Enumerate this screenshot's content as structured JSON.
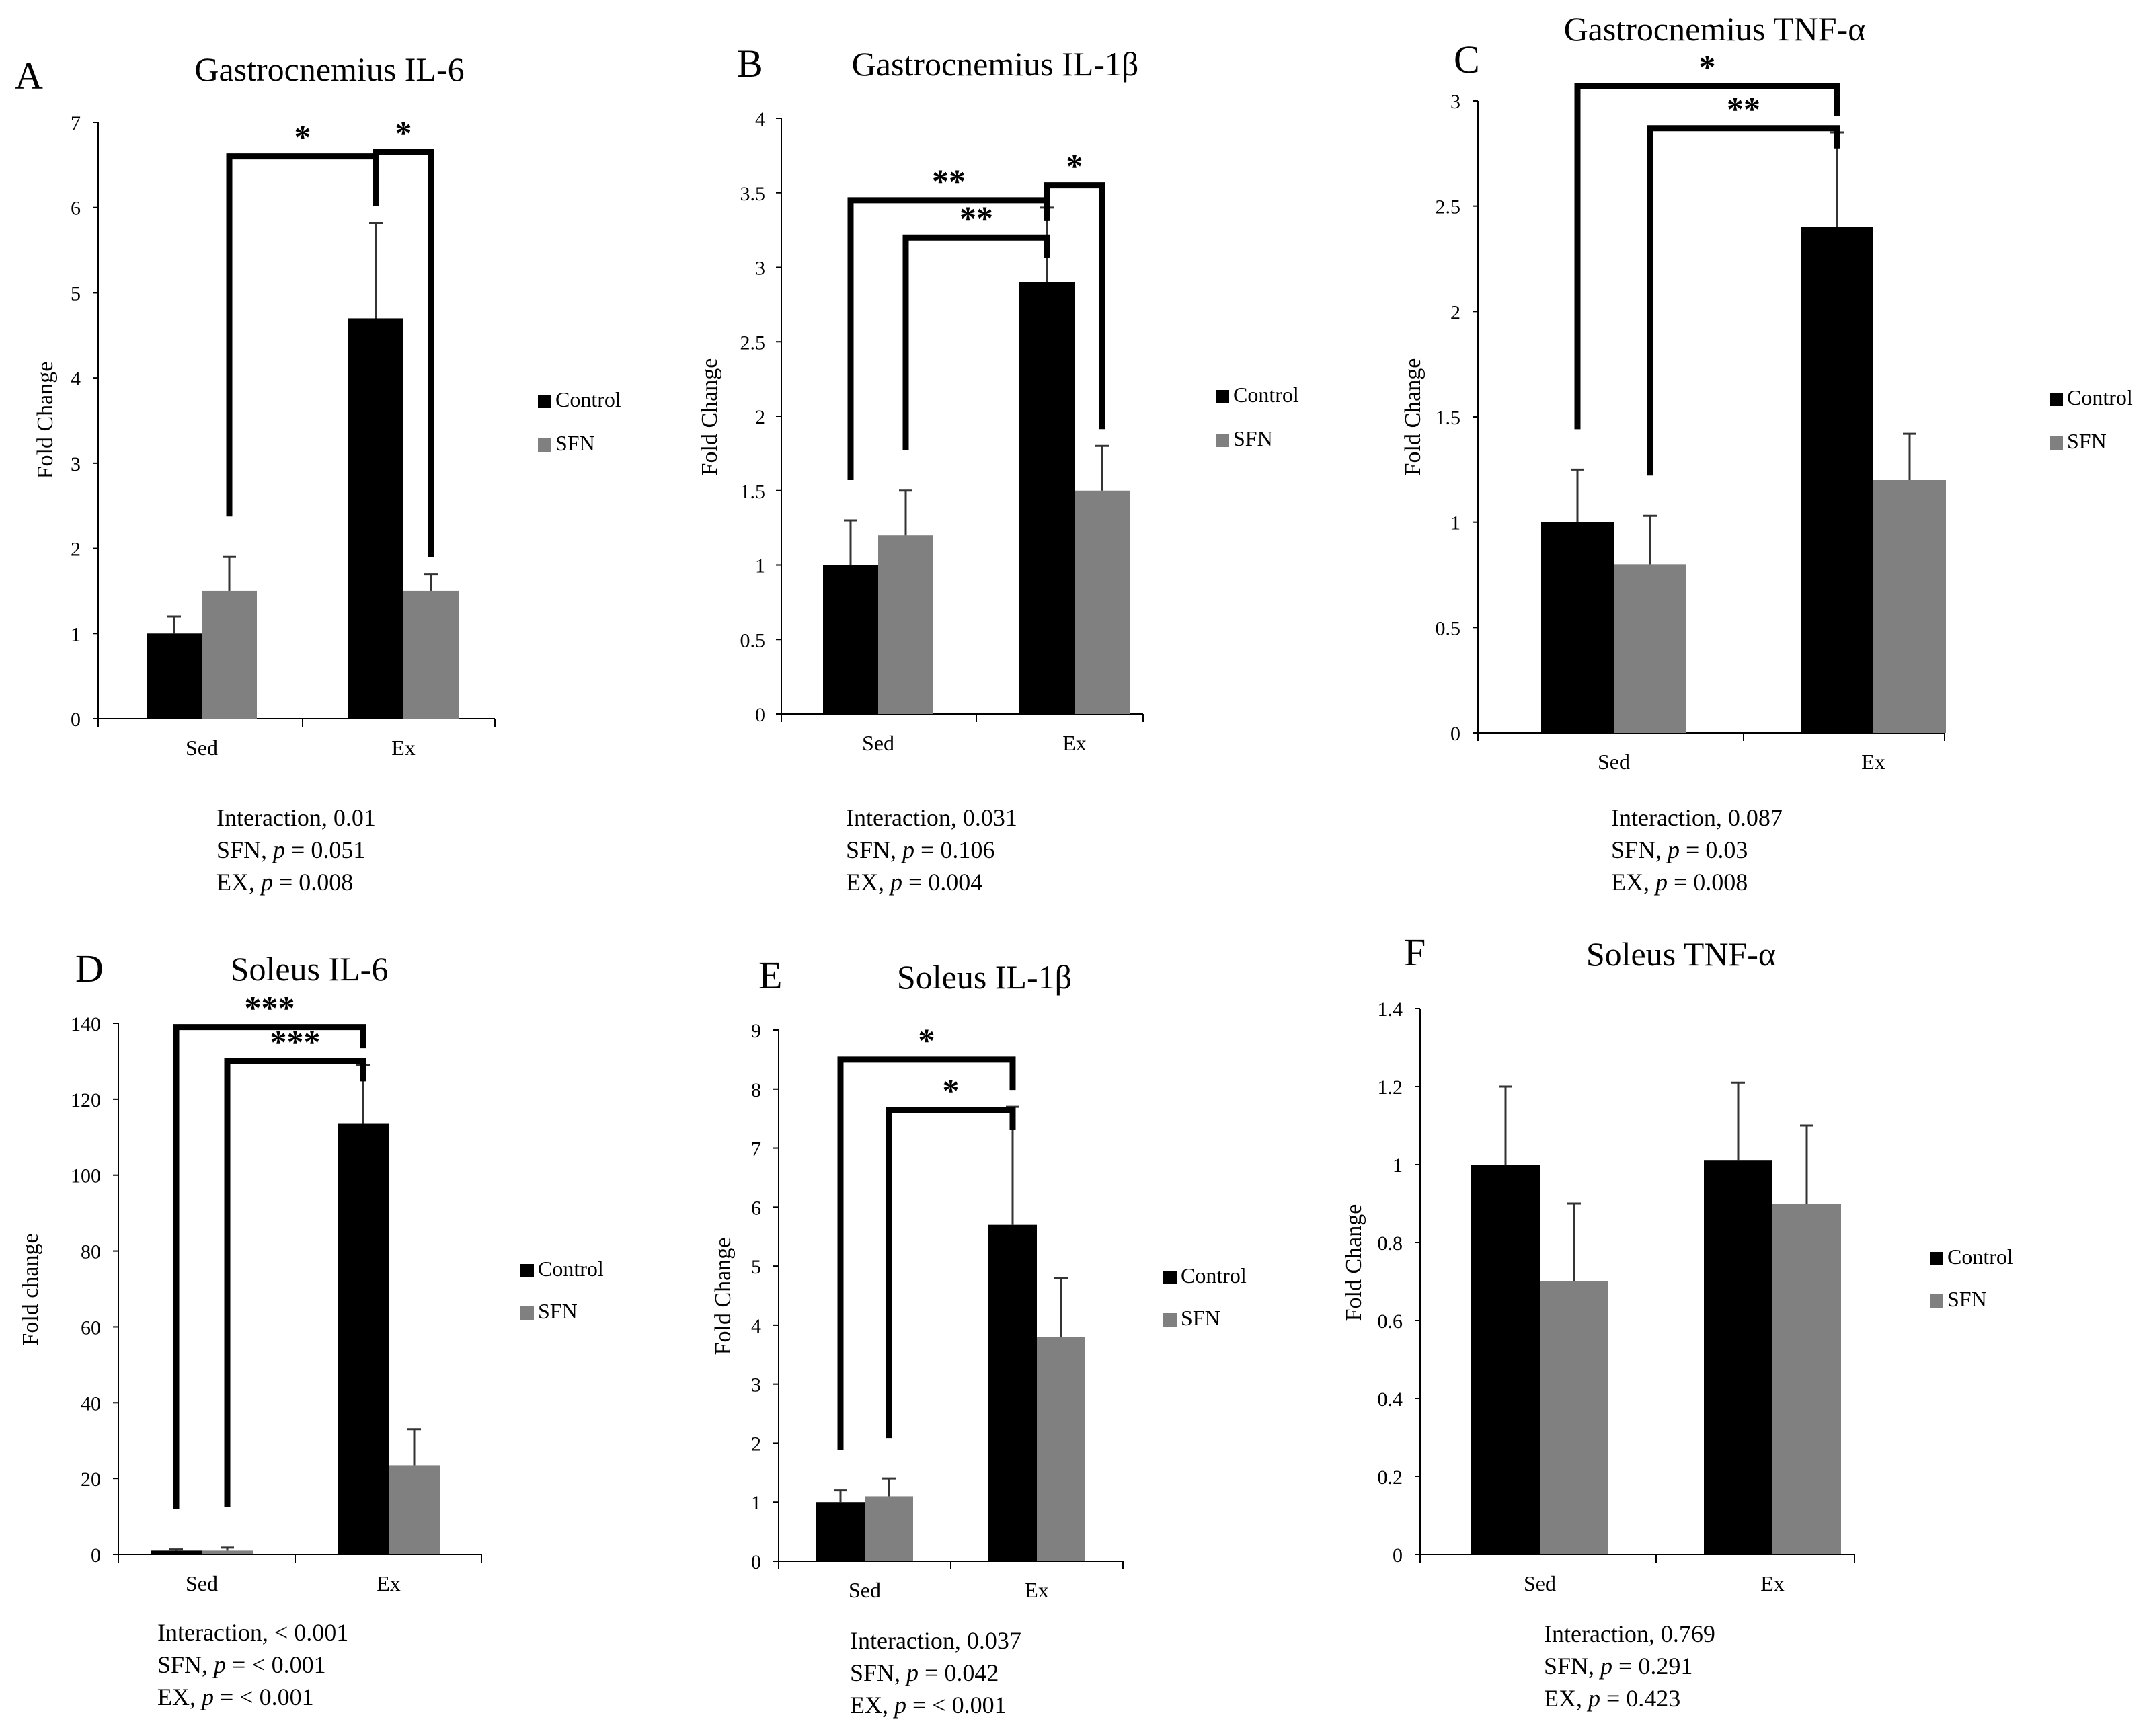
{
  "colors": {
    "control": "#000000",
    "sfn": "#808080",
    "axis": "#000000"
  },
  "legend": {
    "control_label": "Control",
    "sfn_label": "SFN"
  },
  "chart_data": [
    {
      "type": "bar",
      "panel_letter": "A",
      "title": "Gastrocnemius IL-6",
      "ylabel": "Fold Change",
      "xlabel": "",
      "categories": [
        "Sed",
        "Ex"
      ],
      "ylim": [
        0,
        7
      ],
      "yticks": [
        0,
        1,
        2,
        3,
        4,
        5,
        6,
        7
      ],
      "series": [
        {
          "name": "Control",
          "values": [
            1.0,
            4.7
          ],
          "errors": [
            0.2,
            1.12
          ]
        },
        {
          "name": "SFN",
          "values": [
            1.5,
            1.5
          ],
          "errors": [
            0.4,
            0.2
          ]
        }
      ],
      "significance": [
        {
          "from": "Sed-SFN",
          "to": "Ex-Control",
          "label": "*",
          "y": 6.6
        },
        {
          "from": "Ex-Control",
          "to": "Ex-SFN",
          "label": "*",
          "y": 6.65
        }
      ],
      "stats": {
        "interaction": "0.01",
        "sfn": "0.051",
        "ex": "0.008"
      }
    },
    {
      "type": "bar",
      "panel_letter": "B",
      "title": "Gastrocnemius IL-1β",
      "ylabel": "Fold Change",
      "xlabel": "",
      "categories": [
        "Sed",
        "Ex"
      ],
      "ylim": [
        0,
        4
      ],
      "yticks": [
        0,
        0.5,
        1,
        1.5,
        2,
        2.5,
        3,
        3.5,
        4
      ],
      "series": [
        {
          "name": "Control",
          "values": [
            1.0,
            2.9
          ],
          "errors": [
            0.3,
            0.5
          ]
        },
        {
          "name": "SFN",
          "values": [
            1.2,
            1.5
          ],
          "errors": [
            0.3,
            0.3
          ]
        }
      ],
      "significance": [
        {
          "from": "Sed-Control",
          "to": "Ex-Control",
          "label": "**",
          "y": 3.45
        },
        {
          "from": "Sed-SFN",
          "to": "Ex-Control",
          "label": "**",
          "y": 3.2
        },
        {
          "from": "Ex-Control",
          "to": "Ex-SFN",
          "label": "*",
          "y": 3.55
        }
      ],
      "stats": {
        "interaction": "0.031",
        "sfn": "0.106",
        "ex": "0.004"
      }
    },
    {
      "type": "bar",
      "panel_letter": "C",
      "title": "Gastrocnemius TNF-α",
      "ylabel": "Fold Change",
      "xlabel": "",
      "categories": [
        "Sed",
        "Ex"
      ],
      "ylim": [
        0,
        3
      ],
      "yticks": [
        0,
        0.5,
        1,
        1.5,
        2,
        2.5,
        3
      ],
      "series": [
        {
          "name": "Control",
          "values": [
            1.0,
            2.4
          ],
          "errors": [
            0.25,
            0.45
          ]
        },
        {
          "name": "SFN",
          "values": [
            0.8,
            1.2
          ],
          "errors": [
            0.23,
            0.22
          ]
        }
      ],
      "significance": [
        {
          "from": "Sed-Control",
          "to": "Ex-Control",
          "label": "*",
          "y": 3.07
        },
        {
          "from": "Sed-SFN",
          "to": "Ex-Control",
          "label": "**",
          "y": 2.87
        }
      ],
      "stats": {
        "interaction": "0.087",
        "sfn": "0.03",
        "ex": "0.008"
      }
    },
    {
      "type": "bar",
      "panel_letter": "D",
      "title": "Soleus IL-6",
      "ylabel": "Fold change",
      "xlabel": "",
      "categories": [
        "Sed",
        "Ex"
      ],
      "ylim": [
        0,
        140
      ],
      "yticks": [
        0,
        20,
        40,
        60,
        80,
        100,
        120,
        140
      ],
      "series": [
        {
          "name": "Control",
          "values": [
            1.0,
            113.5
          ],
          "errors": [
            0.3,
            15.5
          ]
        },
        {
          "name": "SFN",
          "values": [
            1.0,
            23.5
          ],
          "errors": [
            0.8,
            9.5
          ]
        }
      ],
      "significance": [
        {
          "from": "Sed-Control",
          "to": "Ex-Control",
          "label": "***",
          "y": 139
        },
        {
          "from": "Sed-SFN",
          "to": "Ex-Control",
          "label": "***",
          "y": 130
        }
      ],
      "stats": {
        "interaction": "< 0.001",
        "sfn": "< 0.001",
        "ex": "< 0.001"
      }
    },
    {
      "type": "bar",
      "panel_letter": "E",
      "title": "Soleus IL-1β",
      "ylabel": "Fold Change",
      "xlabel": "",
      "categories": [
        "Sed",
        "Ex"
      ],
      "ylim": [
        0,
        9
      ],
      "yticks": [
        0,
        1,
        2,
        3,
        4,
        5,
        6,
        7,
        8,
        9
      ],
      "series": [
        {
          "name": "Control",
          "values": [
            1.0,
            5.7
          ],
          "errors": [
            0.2,
            2.0
          ]
        },
        {
          "name": "SFN",
          "values": [
            1.1,
            3.8
          ],
          "errors": [
            0.3,
            1.0
          ]
        }
      ],
      "significance": [
        {
          "from": "Sed-Control",
          "to": "Ex-Control",
          "label": "*",
          "y": 8.5
        },
        {
          "from": "Sed-SFN",
          "to": "Ex-Control",
          "label": "*",
          "y": 7.65
        }
      ],
      "stats": {
        "interaction": "0.037",
        "sfn": "0.042",
        "ex": "< 0.001"
      }
    },
    {
      "type": "bar",
      "panel_letter": "F",
      "title": "Soleus TNF-α",
      "ylabel": "Fold Change",
      "xlabel": "",
      "categories": [
        "Sed",
        "Ex"
      ],
      "ylim": [
        0,
        1.4
      ],
      "yticks": [
        0,
        0.2,
        0.4,
        0.6,
        0.8,
        1,
        1.2,
        1.4
      ],
      "series": [
        {
          "name": "Control",
          "values": [
            1.0,
            1.01
          ],
          "errors": [
            0.2,
            0.2
          ]
        },
        {
          "name": "SFN",
          "values": [
            0.7,
            0.9
          ],
          "errors": [
            0.2,
            0.2
          ]
        }
      ],
      "significance": [],
      "stats": {
        "interaction": "0.769",
        "sfn": "0.291",
        "ex": "0.423"
      }
    }
  ]
}
